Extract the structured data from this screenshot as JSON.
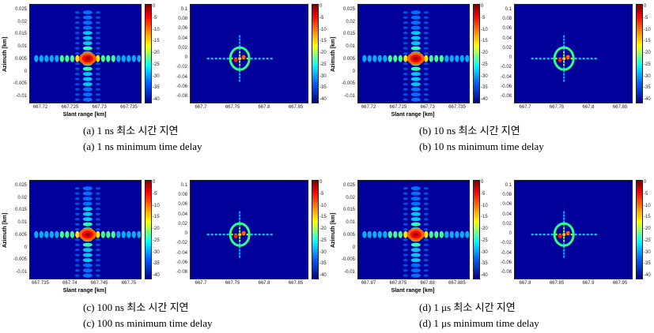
{
  "panels": [
    {
      "caption_ko": "(a)  1  ns  최소  시간  지연",
      "caption_en": "(a)  1  ns  minimum  time  delay",
      "left": {
        "ylabel": "Azimuth [km]",
        "xlabel": "Slant range [km]",
        "xticks": [
          "667.72",
          "667.725",
          "667.73",
          "667.735"
        ],
        "yticks": [
          "0.025",
          "0.02",
          "0.015",
          "0.01",
          "0.005",
          "0",
          "-0.005",
          "-0.01"
        ]
      },
      "right": {
        "xticks": [
          "667.7",
          "667.75",
          "667.8",
          "667.85"
        ],
        "yticks": [
          "0.1",
          "0.08",
          "0.06",
          "0.04",
          "0.02",
          "0",
          "-0.02",
          "-0.04",
          "-0.06",
          "-0.08"
        ]
      }
    },
    {
      "caption_ko": "(b)  10  ns  최소  시간  지연",
      "caption_en": "(b)  10  ns  minimum  time  delay",
      "left": {
        "ylabel": "Azimuth [km]",
        "xlabel": "Slant range [km]",
        "xticks": [
          "667.72",
          "667.725",
          "667.73",
          "667.735"
        ],
        "yticks": [
          "0.025",
          "0.02",
          "0.015",
          "0.01",
          "0.005",
          "0",
          "-0.005",
          "-0.01"
        ]
      },
      "right": {
        "xticks": [
          "667.7",
          "667.75",
          "667.8",
          "667.85"
        ],
        "yticks": [
          "0.1",
          "0.08",
          "0.06",
          "0.04",
          "0.02",
          "0",
          "-0.02",
          "-0.04",
          "-0.06",
          "-0.08"
        ]
      }
    },
    {
      "caption_ko": "(c)  100  ns  최소  시간  지연",
      "caption_en": "(c)  100  ns  minimum  time  delay",
      "left": {
        "ylabel": "Azimuth [km]",
        "xlabel": "Slant range [km]",
        "xticks": [
          "667.735",
          "667.74",
          "667.745",
          "667.75"
        ],
        "yticks": [
          "0.025",
          "0.02",
          "0.015",
          "0.01",
          "0.005",
          "0",
          "-0.005",
          "-0.01"
        ]
      },
      "right": {
        "xticks": [
          "667.7",
          "667.75",
          "667.8",
          "667.85"
        ],
        "yticks": [
          "0.1",
          "0.08",
          "0.06",
          "0.04",
          "0.02",
          "0",
          "-0.02",
          "-0.04",
          "-0.06",
          "-0.08"
        ]
      }
    },
    {
      "caption_ko": "(d)  1  μs  최소  시간  지연",
      "caption_en": "(d)  1  μs  minimum  time  delay",
      "left": {
        "ylabel": "Azimuth [km]",
        "xlabel": "Slant range [km]",
        "xticks": [
          "667.87",
          "667.875",
          "667.88",
          "667.885"
        ],
        "yticks": [
          "0.025",
          "0.02",
          "0.015",
          "0.01",
          "0.005",
          "0",
          "-0.005",
          "-0.01"
        ]
      },
      "right": {
        "xticks": [
          "667.8",
          "667.85",
          "667.9",
          "667.95"
        ],
        "yticks": [
          "0.1",
          "0.08",
          "0.06",
          "0.04",
          "0.02",
          "0",
          "-0.02",
          "-0.04",
          "-0.06",
          "-0.08"
        ]
      }
    }
  ],
  "colorbar_ticks": [
    "0",
    "-5",
    "-10",
    "-15",
    "-20",
    "-25",
    "-30",
    "-35",
    "-40"
  ],
  "colors": {
    "background": "#00009a",
    "peak": "#ff0000"
  }
}
